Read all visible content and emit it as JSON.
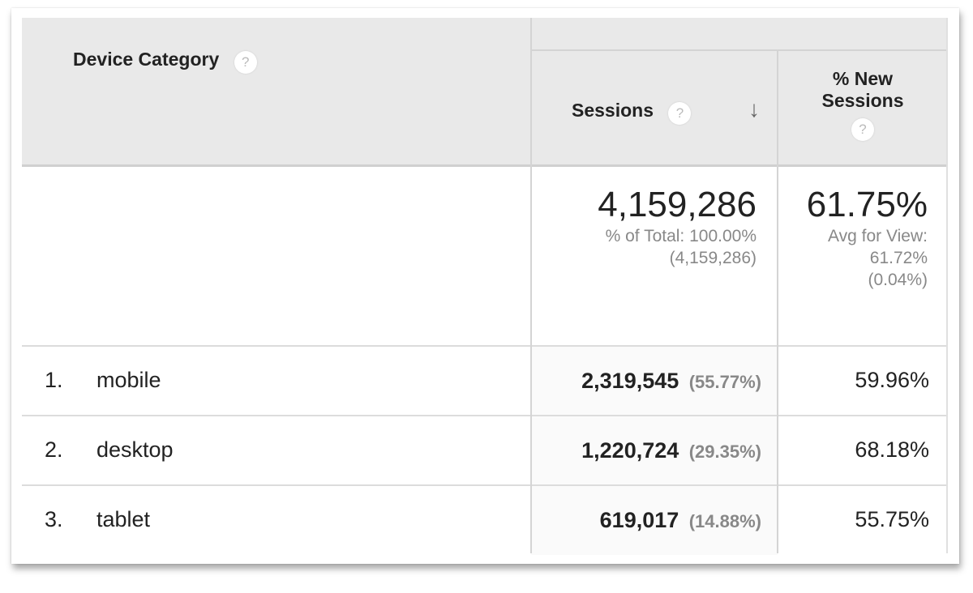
{
  "header": {
    "dimension": "Device Category",
    "sessions": "Sessions",
    "new_sessions_line1": "% New",
    "new_sessions_line2": "Sessions",
    "help_glyph": "?",
    "sort_glyph": "↓"
  },
  "summary": {
    "sessions_total": "4,159,286",
    "sessions_pct_label": "% of Total: 100.00%",
    "sessions_abs": "(4,159,286)",
    "new_sessions": "61.75%",
    "avg_label": "Avg for View:",
    "avg_value": "61.72%",
    "avg_diff": "(0.04%)"
  },
  "rows": [
    {
      "index": "1.",
      "device": "mobile",
      "sessions": "2,319,545",
      "share": "(55.77%)",
      "new_sessions": "59.96%"
    },
    {
      "index": "2.",
      "device": "desktop",
      "sessions": "1,220,724",
      "share": "(29.35%)",
      "new_sessions": "68.18%"
    },
    {
      "index": "3.",
      "device": "tablet",
      "sessions": "619,017",
      "share": "(14.88%)",
      "new_sessions": "55.75%"
    }
  ],
  "colors": {
    "header_bg": "#e9e9e9",
    "grid": "#d4d4d4",
    "muted": "#888888"
  }
}
